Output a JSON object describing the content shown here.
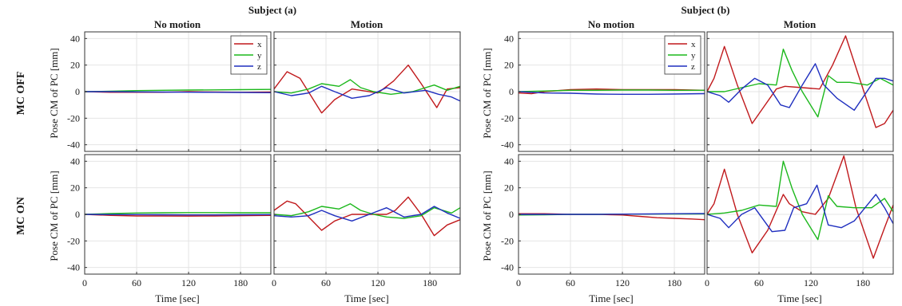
{
  "figure": {
    "groups": [
      {
        "label": "Subject (a)"
      },
      {
        "label": "Subject (b)"
      }
    ],
    "column_titles": [
      "No motion",
      "Motion",
      "No motion",
      "Motion"
    ],
    "row_labels": [
      "MC OFF",
      "MC ON"
    ],
    "ylabel": "Pose CM of PC [mm]",
    "xlabel": "Time [sec]",
    "x_ticks": [
      0,
      60,
      120,
      180
    ],
    "y_ticks": [
      -40,
      -20,
      0,
      20,
      40
    ],
    "legend": [
      "x",
      "y",
      "z"
    ]
  },
  "colors": {
    "x": "#c0191c",
    "y": "#1cb81c",
    "z": "#1f2fbf",
    "grid": "#e4e4e4",
    "axis": "#333333"
  },
  "chart_data": {
    "type": "line",
    "grid": true,
    "xlim": [
      0,
      215
    ],
    "ylim": [
      -45,
      45
    ],
    "series_names": [
      "x",
      "y",
      "z"
    ],
    "panels": [
      {
        "id": "a-nomotion-off",
        "subject": "Subject (a)",
        "condition": "No motion",
        "row": "MC OFF",
        "legend": true,
        "series": [
          {
            "name": "x",
            "x": [
              0,
              30,
              60,
              90,
              120,
              150,
              180,
              215
            ],
            "y": [
              0,
              -0.5,
              -0.5,
              -0.5,
              0,
              -0.3,
              -0.5,
              -0.3
            ]
          },
          {
            "name": "y",
            "x": [
              0,
              30,
              60,
              90,
              120,
              150,
              180,
              215
            ],
            "y": [
              0,
              0.3,
              0.8,
              1,
              1.2,
              1.3,
              1.5,
              1.7
            ]
          },
          {
            "name": "z",
            "x": [
              0,
              30,
              60,
              90,
              120,
              150,
              180,
              215
            ],
            "y": [
              0,
              0,
              -0.2,
              -0.3,
              -0.4,
              -0.5,
              -0.6,
              -0.8
            ]
          }
        ]
      },
      {
        "id": "a-motion-off",
        "subject": "Subject (a)",
        "condition": "Motion",
        "row": "MC OFF",
        "series": [
          {
            "name": "x",
            "x": [
              0,
              15,
              30,
              55,
              70,
              90,
              120,
              138,
              155,
              170,
              188,
              200,
              215
            ],
            "y": [
              2,
              15,
              10,
              -16,
              -6,
              2,
              -1,
              8,
              20,
              6,
              -12,
              2,
              3
            ]
          },
          {
            "name": "y",
            "x": [
              0,
              20,
              40,
              55,
              75,
              88,
              100,
              115,
              135,
              160,
              185,
              200,
              215
            ],
            "y": [
              0,
              -1,
              2,
              6,
              4,
              9,
              3,
              0,
              -2,
              0,
              5,
              1,
              4
            ]
          },
          {
            "name": "z",
            "x": [
              0,
              20,
              40,
              55,
              70,
              90,
              110,
              130,
              150,
              175,
              190,
              205,
              215
            ],
            "y": [
              0,
              -3,
              -1,
              4,
              0,
              -5,
              -3,
              3,
              -1,
              1,
              -2,
              -4,
              -7
            ]
          }
        ]
      },
      {
        "id": "b-nomotion-off",
        "subject": "Subject (b)",
        "condition": "No motion",
        "row": "MC OFF",
        "legend": true,
        "series": [
          {
            "name": "x",
            "x": [
              0,
              15,
              30,
              60,
              90,
              120,
              150,
              180,
              215
            ],
            "y": [
              -1,
              -1.5,
              0,
              1.5,
              2,
              1.5,
              1.5,
              1.5,
              1
            ]
          },
          {
            "name": "y",
            "x": [
              0,
              30,
              60,
              90,
              120,
              150,
              180,
              215
            ],
            "y": [
              0,
              0.5,
              1,
              1,
              1.2,
              1.2,
              1,
              1
            ]
          },
          {
            "name": "z",
            "x": [
              0,
              30,
              60,
              90,
              120,
              150,
              180,
              215
            ],
            "y": [
              0,
              -1,
              -1.2,
              -1.8,
              -2,
              -2,
              -1.8,
              -1.5
            ]
          }
        ]
      },
      {
        "id": "b-motion-off",
        "subject": "Subject (b)",
        "condition": "Motion",
        "row": "MC OFF",
        "series": [
          {
            "name": "x",
            "x": [
              0,
              8,
              20,
              35,
              52,
              65,
              80,
              90,
              110,
              130,
              145,
              160,
              175,
              195,
              205,
              215
            ],
            "y": [
              0,
              10,
              34,
              5,
              -24,
              -12,
              2,
              4,
              3,
              2,
              20,
              42,
              12,
              -27,
              -24,
              -14
            ]
          },
          {
            "name": "y",
            "x": [
              0,
              20,
              40,
              60,
              80,
              88,
              98,
              110,
              128,
              140,
              150,
              165,
              185,
              200,
              215
            ],
            "y": [
              0,
              0,
              3,
              6,
              5,
              32,
              16,
              0,
              -19,
              12,
              7,
              7,
              5,
              10,
              5
            ]
          },
          {
            "name": "z",
            "x": [
              0,
              15,
              25,
              40,
              55,
              70,
              85,
              95,
              110,
              125,
              135,
              150,
              170,
              195,
              205,
              215
            ],
            "y": [
              0,
              -3,
              -8,
              2,
              10,
              5,
              -10,
              -12,
              5,
              21,
              5,
              -5,
              -14,
              10,
              10,
              8
            ]
          }
        ]
      },
      {
        "id": "a-nomotion-on",
        "subject": "Subject (a)",
        "condition": "No motion",
        "row": "MC ON",
        "series": [
          {
            "name": "x",
            "x": [
              0,
              30,
              60,
              90,
              120,
              150,
              180,
              215
            ],
            "y": [
              0,
              -0.8,
              -1.2,
              -1.2,
              -1.3,
              -1.2,
              -1,
              -0.8
            ]
          },
          {
            "name": "y",
            "x": [
              0,
              30,
              60,
              90,
              120,
              150,
              180,
              215
            ],
            "y": [
              0,
              0.6,
              1,
              1.2,
              1.3,
              1.3,
              1.2,
              1.2
            ]
          },
          {
            "name": "z",
            "x": [
              0,
              30,
              60,
              90,
              120,
              150,
              180,
              215
            ],
            "y": [
              0,
              -0.1,
              -0.2,
              -0.3,
              -0.4,
              -0.4,
              -0.3,
              -0.2
            ]
          }
        ]
      },
      {
        "id": "a-motion-on",
        "subject": "Subject (a)",
        "condition": "Motion",
        "row": "MC ON",
        "series": [
          {
            "name": "x",
            "x": [
              0,
              15,
              25,
              55,
              70,
              90,
              110,
              130,
              140,
              155,
              170,
              185,
              200,
              215
            ],
            "y": [
              3,
              10,
              8,
              -12,
              -5,
              0,
              0,
              0,
              3,
              13,
              0,
              -16,
              -8,
              -4
            ]
          },
          {
            "name": "y",
            "x": [
              0,
              20,
              40,
              55,
              75,
              88,
              100,
              115,
              130,
              150,
              170,
              185,
              205,
              215
            ],
            "y": [
              0,
              -1,
              2,
              6,
              4,
              8,
              3,
              0,
              -2,
              -3,
              -1,
              5,
              1,
              5
            ]
          },
          {
            "name": "z",
            "x": [
              0,
              20,
              40,
              55,
              70,
              90,
              110,
              130,
              150,
              170,
              185,
              200,
              215
            ],
            "y": [
              -1,
              -2,
              -1,
              3,
              -1,
              -5,
              0,
              5,
              -2,
              0,
              6,
              1,
              -3
            ]
          }
        ]
      },
      {
        "id": "b-nomotion-on",
        "subject": "Subject (b)",
        "condition": "No motion",
        "row": "MC ON",
        "series": [
          {
            "name": "x",
            "x": [
              0,
              30,
              60,
              90,
              120,
              140,
              160,
              180,
              200,
              215
            ],
            "y": [
              0.5,
              0.5,
              0,
              0,
              -0.5,
              -1.5,
              -2.5,
              -3,
              -3.5,
              -4
            ]
          },
          {
            "name": "y",
            "x": [
              0,
              30,
              60,
              90,
              120,
              150,
              180,
              215
            ],
            "y": [
              -0.5,
              -0.3,
              0,
              0,
              0.2,
              0.2,
              0.3,
              0.3
            ]
          },
          {
            "name": "z",
            "x": [
              0,
              30,
              60,
              90,
              120,
              150,
              180,
              215
            ],
            "y": [
              0,
              0,
              0,
              0,
              0.2,
              0.3,
              0.5,
              0.6
            ]
          }
        ]
      },
      {
        "id": "b-motion-on",
        "subject": "Subject (b)",
        "condition": "Motion",
        "row": "MC ON",
        "series": [
          {
            "name": "x",
            "x": [
              0,
              8,
              20,
              35,
              52,
              70,
              88,
              95,
              110,
              125,
              140,
              158,
              172,
              192,
              205,
              215
            ],
            "y": [
              0,
              8,
              34,
              0,
              -29,
              -12,
              15,
              8,
              2,
              0,
              12,
              44,
              5,
              -33,
              -10,
              7
            ]
          },
          {
            "name": "y",
            "x": [
              0,
              20,
              40,
              60,
              80,
              88,
              98,
              110,
              128,
              140,
              150,
              170,
              190,
              205,
              215
            ],
            "y": [
              0,
              1,
              3,
              7,
              6,
              40,
              20,
              0,
              -19,
              14,
              6,
              5,
              5,
              12,
              2
            ]
          },
          {
            "name": "z",
            "x": [
              0,
              15,
              25,
              40,
              55,
              75,
              90,
              100,
              115,
              127,
              140,
              155,
              170,
              195,
              205,
              215
            ],
            "y": [
              0,
              -3,
              -10,
              0,
              5,
              -13,
              -12,
              5,
              8,
              22,
              -8,
              -10,
              -5,
              15,
              5,
              -7
            ]
          }
        ]
      }
    ]
  }
}
